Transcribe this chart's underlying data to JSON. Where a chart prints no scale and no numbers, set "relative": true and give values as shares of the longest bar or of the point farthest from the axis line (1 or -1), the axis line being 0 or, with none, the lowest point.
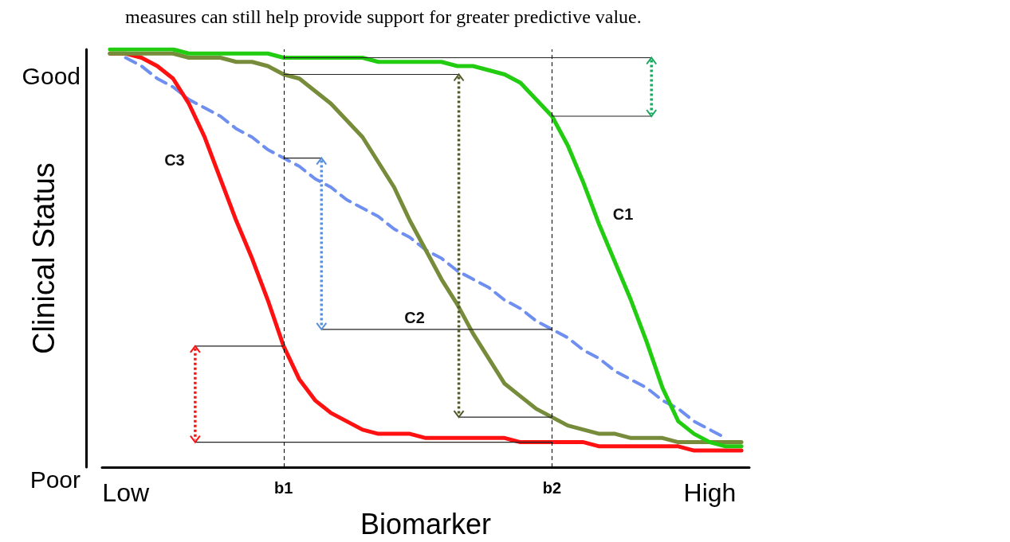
{
  "chart_data": {
    "type": "line",
    "annotations": [
      "measures can still help provide support for greater predictive value.",
      "Good",
      "Poor"
    ],
    "xlabel": "Biomarker",
    "ylabel": "Clinical Status",
    "categories": [
      null,
      "Low",
      null,
      null,
      null,
      null,
      null,
      null,
      null,
      null,
      null,
      "b1",
      null,
      null,
      null,
      null,
      null,
      null,
      null,
      null,
      null,
      null,
      null,
      null,
      null,
      null,
      null,
      null,
      "b2",
      null,
      null,
      null,
      null,
      null,
      null,
      null,
      null,
      null,
      "High",
      null,
      null
    ],
    "relative": true,
    "series": [
      {
        "name": "C1",
        "color": "#22cc11",
        "values": [
          1.0,
          1.0,
          1.0,
          1.0,
          1.0,
          0.99,
          0.99,
          0.99,
          0.99,
          0.99,
          0.99,
          0.98,
          0.98,
          0.98,
          0.98,
          0.98,
          0.98,
          0.97,
          0.97,
          0.97,
          0.97,
          0.97,
          0.96,
          0.96,
          0.95,
          0.94,
          0.92,
          0.88,
          0.84,
          0.77,
          0.68,
          0.58,
          0.49,
          0.4,
          0.3,
          0.19,
          0.11,
          0.08,
          0.06,
          0.05,
          0.05
        ]
      },
      {
        "name": "C2",
        "color": "#778c3a",
        "values": [
          0.99,
          0.99,
          0.99,
          0.99,
          0.99,
          0.98,
          0.98,
          0.98,
          0.97,
          0.97,
          0.96,
          0.94,
          0.93,
          0.9,
          0.87,
          0.83,
          0.79,
          0.73,
          0.67,
          0.59,
          0.52,
          0.45,
          0.39,
          0.32,
          0.26,
          0.2,
          0.17,
          0.14,
          0.12,
          0.1,
          0.09,
          0.08,
          0.08,
          0.07,
          0.07,
          0.07,
          0.06,
          0.06,
          0.06,
          0.06,
          0.06
        ]
      },
      {
        "name": "C3",
        "color": "#ff1111",
        "values": [
          0.99,
          0.99,
          0.98,
          0.96,
          0.93,
          0.87,
          0.79,
          0.69,
          0.59,
          0.5,
          0.4,
          0.29,
          0.21,
          0.16,
          0.13,
          0.11,
          0.09,
          0.08,
          0.08,
          0.08,
          0.07,
          0.07,
          0.07,
          0.07,
          0.07,
          0.07,
          0.06,
          0.06,
          0.06,
          0.06,
          0.06,
          0.05,
          0.05,
          0.05,
          0.05,
          0.05,
          0.05,
          0.04,
          0.04,
          0.04,
          0.04
        ]
      },
      {
        "color": "#6f8ff0",
        "line_style": "dashed",
        "values": [
          null,
          0.98,
          0.96,
          0.93,
          0.91,
          0.88,
          0.86,
          0.84,
          0.81,
          0.79,
          0.76,
          0.74,
          0.72,
          0.69,
          0.67,
          0.64,
          0.62,
          0.6,
          0.57,
          0.55,
          0.52,
          0.5,
          0.47,
          0.45,
          0.43,
          0.4,
          0.38,
          0.35,
          0.33,
          0.31,
          0.28,
          0.26,
          0.23,
          0.21,
          0.19,
          0.16,
          0.14,
          0.11,
          0.09,
          0.07,
          null
        ]
      }
    ],
    "ref_lines": [
      {
        "axis": "x",
        "value": "b1",
        "color": "#000000",
        "line_style": "dashed"
      },
      {
        "axis": "x",
        "value": "b2",
        "color": "#000000",
        "line_style": "dashed"
      },
      {
        "axis": "y",
        "value": 0.98,
        "color": "#222222"
      },
      {
        "axis": "y",
        "value": 0.84,
        "color": "#222222"
      },
      {
        "axis": "y",
        "value": 0.94,
        "color": "#222222"
      },
      {
        "axis": "y",
        "value": 0.12,
        "color": "#222222"
      },
      {
        "axis": "y",
        "value": 0.29,
        "color": "#222222"
      },
      {
        "axis": "y",
        "value": 0.06,
        "color": "#222222"
      },
      {
        "axis": "y",
        "value": 0.33,
        "color": "#222222"
      }
    ],
    "legend": false,
    "grid": false,
    "marker": "none"
  }
}
